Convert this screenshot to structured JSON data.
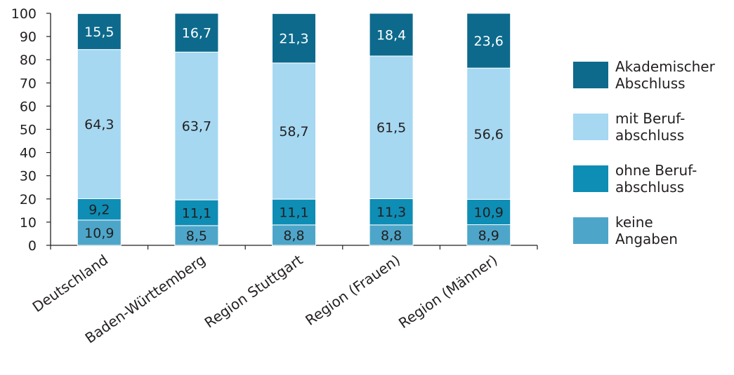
{
  "chart_data": {
    "type": "bar",
    "stacked": true,
    "categories": [
      "Deutschland",
      "Baden-Württemberg",
      "Region Stuttgart",
      "Region (Frauen)",
      "Region (Männer)"
    ],
    "series": [
      {
        "name": "keine Angaben",
        "values": [
          10.9,
          8.5,
          8.8,
          8.8,
          8.9
        ],
        "labels": [
          "10,9",
          "8,5",
          "8,8",
          "8,8",
          "8,9"
        ],
        "color": "#4da6c9"
      },
      {
        "name": "ohne Beruf-abschluss",
        "values": [
          9.2,
          11.1,
          11.1,
          11.3,
          10.9
        ],
        "labels": [
          "9,2",
          "11,1",
          "11,1",
          "11,3",
          "10,9"
        ],
        "color": "#0e8db5"
      },
      {
        "name": "mit Beruf-abschluss",
        "values": [
          64.3,
          63.7,
          58.7,
          61.5,
          56.6
        ],
        "labels": [
          "64,3",
          "63,7",
          "58,7",
          "61,5",
          "56,6"
        ],
        "color": "#a6d8f1"
      },
      {
        "name": "Akademischer Abschluss",
        "values": [
          15.5,
          16.7,
          21.3,
          18.4,
          23.6
        ],
        "labels": [
          "15,5",
          "16,7",
          "21,3",
          "18,4",
          "23,6"
        ],
        "color": "#0d6a8c"
      }
    ],
    "ylim": [
      0,
      100
    ],
    "yticks": [
      "0",
      "10",
      "20",
      "30",
      "40",
      "50",
      "60",
      "70",
      "80",
      "90",
      "100"
    ],
    "legend_position": "right",
    "grid": false,
    "title": "",
    "xlabel": "",
    "ylabel": ""
  },
  "legend": [
    {
      "line1": "Akademischer",
      "line2": "Abschluss",
      "color": "#0d6a8c"
    },
    {
      "line1": "mit Beruf-",
      "line2": "abschluss",
      "color": "#a6d8f1"
    },
    {
      "line1": "ohne Beruf-",
      "line2": "abschluss",
      "color": "#0e8db5"
    },
    {
      "line1": "keine",
      "line2": "Angaben",
      "color": "#4da6c9"
    }
  ]
}
